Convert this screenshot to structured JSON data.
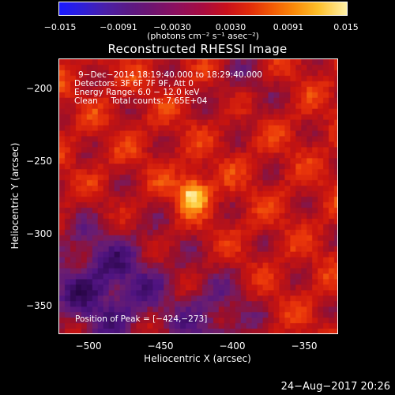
{
  "colorbar": {
    "ticks": [
      "−0.015",
      "−0.0091",
      "−0.0030",
      "0.0030",
      "0.0091",
      "0.015"
    ],
    "units_text": "(photons cm⁻² s⁻¹ asec⁻²)"
  },
  "title": "Reconstructed RHESSI Image",
  "info": {
    "line1": "9−Dec−2014 18:19:40.000 to 18:29:40.000",
    "line2": "Detectors: 3F 6F 7F 9F, Att 0",
    "line3": "Energy Range: 6.0 − 12.0 keV",
    "line4": "Clean     Total counts: 7.65E+04",
    "peak": "Position of Peak = [−424,−273]"
  },
  "axes": {
    "xlabel": "Heliocentric X (arcsec)",
    "ylabel": "Heliocentric Y (arcsec)",
    "xticks": [
      "−500",
      "−450",
      "−400",
      "−350"
    ],
    "yticks": [
      "−200",
      "−250",
      "−300",
      "−350"
    ]
  },
  "footer": {
    "date": "24−Aug−2017 20:26"
  },
  "colors": {
    "background": "#000000",
    "frame": "#ffffff"
  }
}
